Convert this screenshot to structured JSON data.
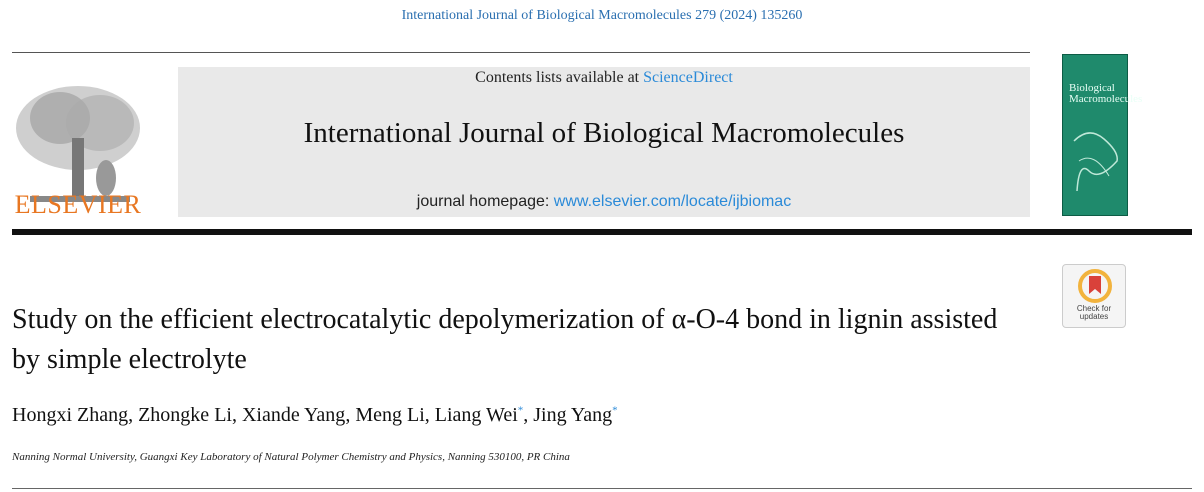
{
  "header": {
    "citation": "International Journal of Biological Macromolecules 279 (2024) 135260",
    "publisher": "ELSEVIER",
    "contents_prefix": "Contents lists available at ",
    "contents_link": "ScienceDirect",
    "journal_title": "International Journal of Biological Macromolecules",
    "homepage_prefix": "journal homepage: ",
    "homepage_link": "www.elsevier.com/locate/ijbiomac",
    "cover_title": "Biological Macromolecules",
    "badge": "Check for updates"
  },
  "article": {
    "title": "Study on the efficient electrocatalytic depolymerization of α-O-4 bond in lignin assisted by simple electrolyte",
    "author_separator": ", ",
    "authors": [
      {
        "name": "Hongxi Zhang"
      },
      {
        "name": "Zhongke Li"
      },
      {
        "name": "Xiande Yang"
      },
      {
        "name": "Meng Li"
      },
      {
        "name": "Liang Wei",
        "mark": "*"
      },
      {
        "name": "Jing Yang",
        "mark": "*"
      }
    ],
    "affiliation": "Nanning Normal University, Guangxi Key Laboratory of Natural Polymer Chemistry and Physics, Nanning 530100, PR China"
  }
}
